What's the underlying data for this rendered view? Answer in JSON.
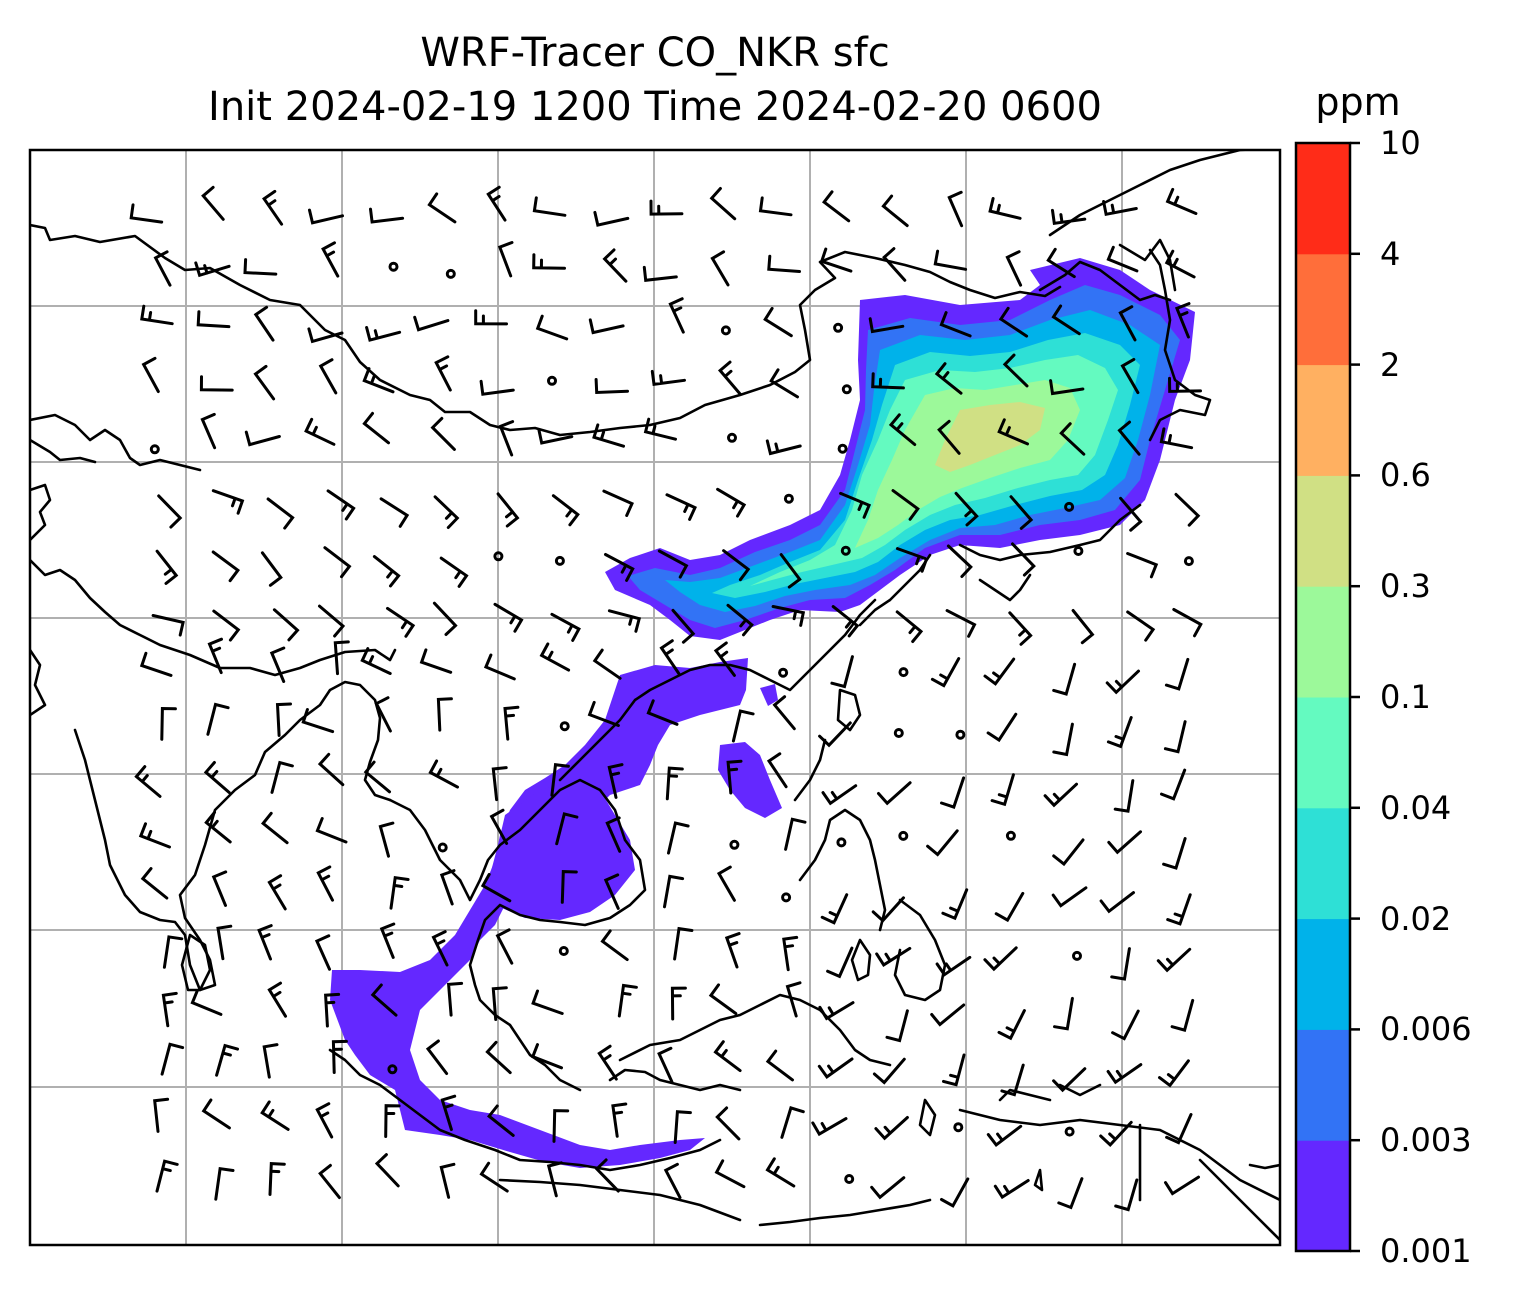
{
  "title": {
    "line1": "WRF-Tracer CO_NKR sfc",
    "line2": "Init 2024-02-19 1200 Time 2024-02-20 0600"
  },
  "colorbar": {
    "unit": "ppm",
    "levels": [
      "0.001",
      "0.003",
      "0.006",
      "0.02",
      "0.04",
      "0.1",
      "0.3",
      "0.6",
      "2",
      "4",
      "10"
    ],
    "colors": [
      "#6428ff",
      "#3273f5",
      "#00b2ea",
      "#2ee0d6",
      "#64fac0",
      "#9cf99a",
      "#d0e084",
      "#ffb061",
      "#ff6e3a",
      "#ff2c18"
    ]
  },
  "map": {
    "coastline_color": "#000000",
    "grid_color": "#b0b0b0",
    "features": [
      "tracer-plume-east-asia",
      "tracer-plume-southeast-asia",
      "wind-barbs",
      "coastlines",
      "lat-lon-grid"
    ]
  }
}
